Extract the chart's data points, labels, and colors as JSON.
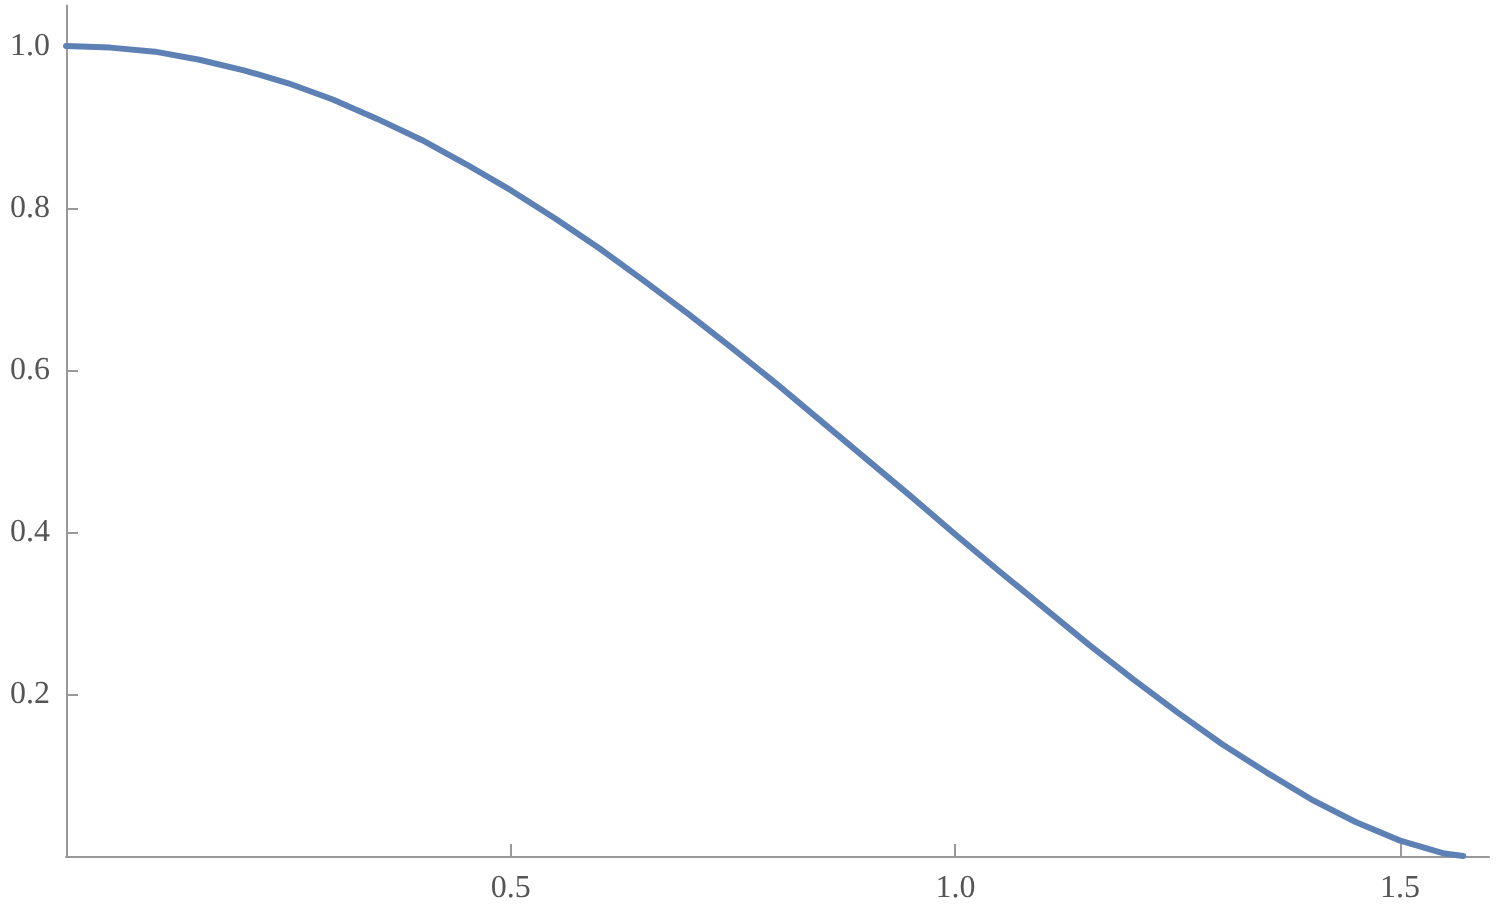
{
  "chart_data": {
    "type": "line",
    "x": [
      0,
      0.05,
      0.1,
      0.15,
      0.2,
      0.25,
      0.3,
      0.35,
      0.4,
      0.45,
      0.5,
      0.55,
      0.6,
      0.65,
      0.7,
      0.75,
      0.8,
      0.85,
      0.9,
      0.95,
      1.0,
      1.05,
      1.1,
      1.15,
      1.2,
      1.25,
      1.3,
      1.35,
      1.4,
      1.45,
      1.5,
      1.55,
      1.571
    ],
    "series": [
      {
        "color": "#5e81b5",
        "values": [
          1,
          0.998,
          0.993,
          0.983,
          0.97,
          0.954,
          0.934,
          0.91,
          0.884,
          0.854,
          0.822,
          0.787,
          0.75,
          0.71,
          0.669,
          0.626,
          0.582,
          0.536,
          0.49,
          0.444,
          0.397,
          0.351,
          0.306,
          0.261,
          0.218,
          0.177,
          0.138,
          0.103,
          0.07,
          0.042,
          0.019,
          0.003,
          0
        ]
      }
    ],
    "xlim": [
      0,
      1.6
    ],
    "xticks": [
      0.5,
      {
        "value": 1,
        "label": "1.0"
      },
      1.5
    ],
    "ylim": [
      0,
      1.05
    ],
    "yticks": [
      0.2,
      0.4,
      0.6,
      0.8,
      {
        "value": 1,
        "label": "1.0"
      }
    ],
    "grid": false,
    "marker": "none",
    "line_style": "solid"
  }
}
